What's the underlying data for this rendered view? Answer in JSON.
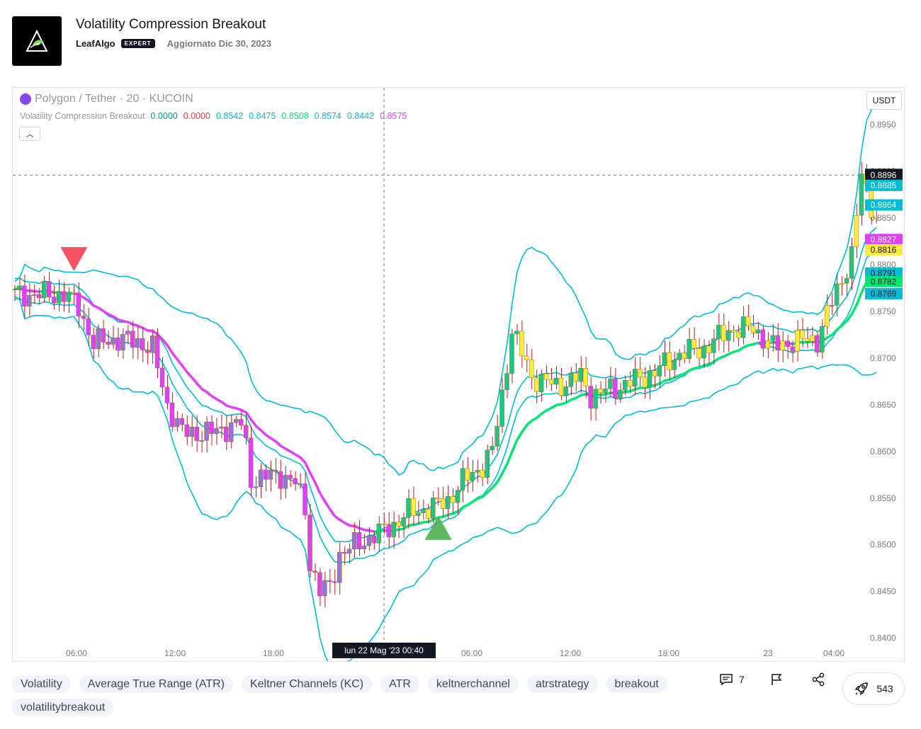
{
  "header": {
    "title": "Volatility Compression Breakout",
    "author": "LeafAlgo",
    "badge": "EXPERT",
    "updated": "Aggiornato Dic 30, 2023"
  },
  "chart": {
    "symbol": "Polygon / Tether · 20 · KUCOIN",
    "currency": "USDT",
    "indicator_name": "Volatility Compression Breakout",
    "indicator_values": [
      {
        "value": "0.0000",
        "color": "#089981"
      },
      {
        "value": "0.0000",
        "color": "#f23645"
      },
      {
        "value": "0.8542",
        "color": "#00bcd4"
      },
      {
        "value": "0.8475",
        "color": "#00bcd4"
      },
      {
        "value": "0.8508",
        "color": "#00e676"
      },
      {
        "value": "0.8574",
        "color": "#00bcd4"
      },
      {
        "value": "0.8442",
        "color": "#00bcd4"
      },
      {
        "value": "0.8575",
        "color": "#e040fb"
      }
    ],
    "crosshair_date": "lun 22 Mag '23   00:40",
    "crosshair_price": "0.8896",
    "price_labels": [
      {
        "value": "0.8885",
        "color": "#00bcd4",
        "text_color": "#ffffff"
      },
      {
        "value": "0.8864",
        "color": "#00bcd4",
        "text_color": "#ffffff"
      },
      {
        "value": "0.8827",
        "color": "#e040fb",
        "text_color": "#ffffff"
      },
      {
        "value": "0.8816",
        "color": "#ffeb3b",
        "text_color": "#131722"
      },
      {
        "value": "0.8791",
        "color": "#00bcd4",
        "text_color": "#131722"
      },
      {
        "value": "0.8782",
        "color": "#00e676",
        "text_color": "#131722"
      },
      {
        "value": "0.8769",
        "color": "#00bcd4",
        "text_color": "#131722"
      }
    ]
  },
  "chart_data": {
    "type": "line",
    "title": "",
    "xlabel": "",
    "ylabel": "",
    "y_ticks": [
      "0.8950",
      "0.8900",
      "0.8850",
      "0.8800",
      "0.8750",
      "0.8700",
      "0.8650",
      "0.8600",
      "0.8550",
      "0.8500",
      "0.8450",
      "0.8400"
    ],
    "x_ticks": [
      "06:00",
      "12:00",
      "18:00",
      "06:00",
      "12:00",
      "18:00",
      "23",
      "04:00"
    ],
    "ylim": [
      0.838,
      0.8985
    ],
    "grid": false,
    "series": [],
    "signals": [
      {
        "type": "sell",
        "color": "#f23645"
      },
      {
        "type": "buy",
        "color": "#4caf50"
      }
    ]
  },
  "tags": [
    "Volatility",
    "Average True Range (ATR)",
    "Keltner Channels (KC)",
    "ATR",
    "keltnerchannel",
    "atrstrategy",
    "breakout",
    "volatilitybreakout"
  ],
  "actions": {
    "comments": "7",
    "boosts": "543"
  }
}
